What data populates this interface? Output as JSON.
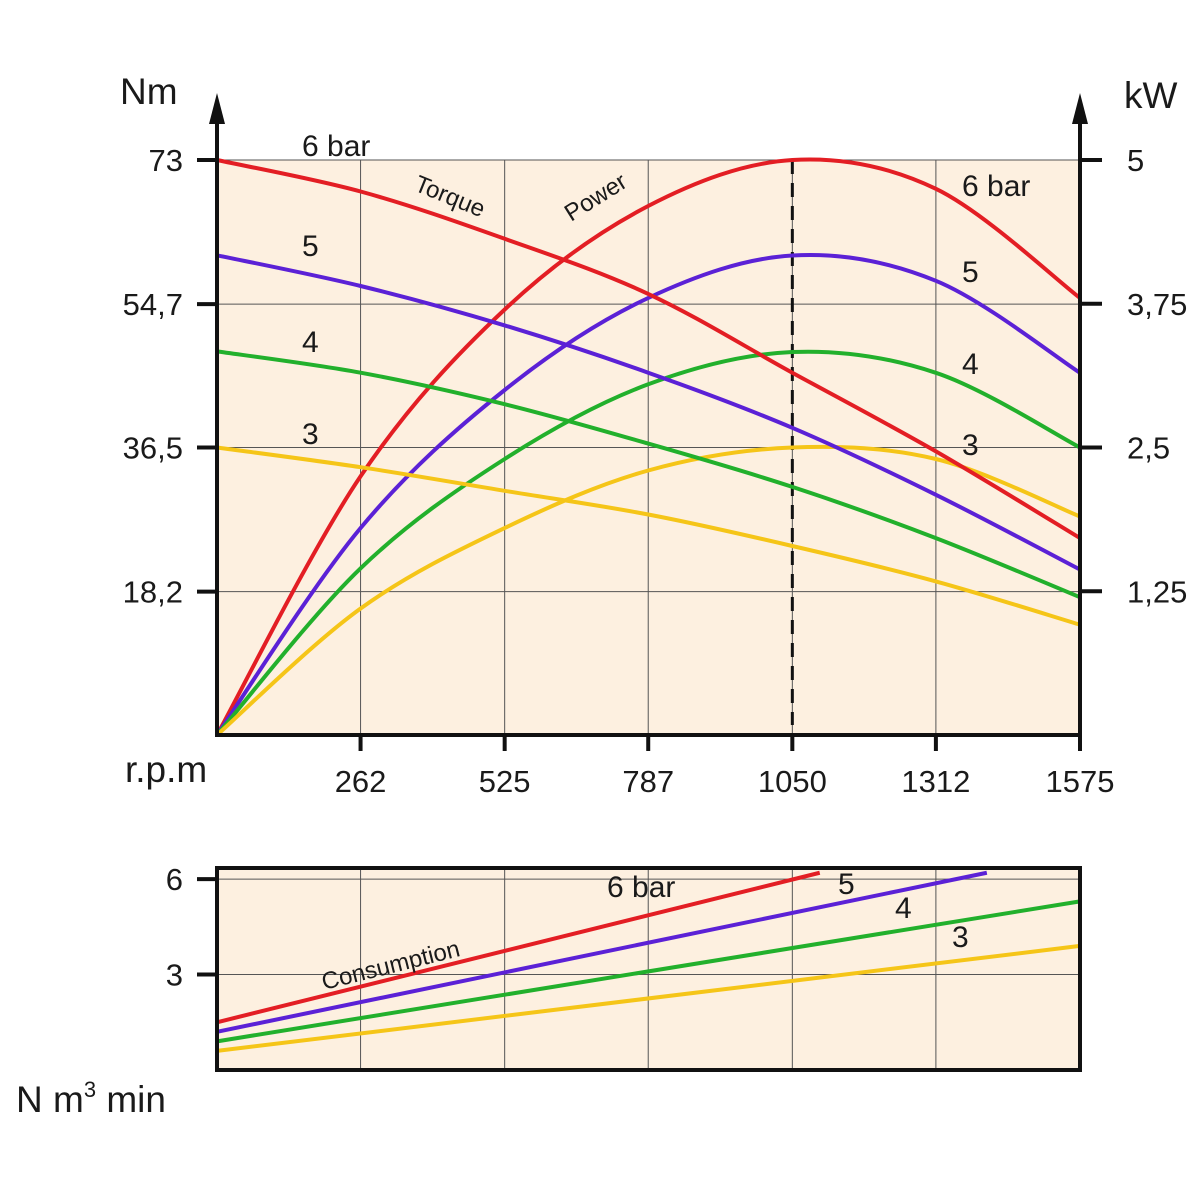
{
  "chart_data": [
    {
      "type": "line",
      "subtitle_labels": {
        "torque": "Torque",
        "power": "Power"
      },
      "x_title": "r.p.m",
      "x_ticks": [
        262,
        525,
        787,
        1050,
        1312,
        1575
      ],
      "x_tick_labels": [
        "262",
        "525",
        "787",
        "1050",
        "1312",
        "1575"
      ],
      "xlim": [
        0,
        1575
      ],
      "y_left_title": "Nm",
      "y_left_ticks": [
        18.2,
        36.5,
        54.7,
        73
      ],
      "y_left_tick_labels": [
        "18,2",
        "36,5",
        "54,7",
        "73"
      ],
      "y_left_lim": [
        0,
        73
      ],
      "y_right_title": "kW",
      "y_right_ticks": [
        1.25,
        2.5,
        3.75,
        5
      ],
      "y_right_tick_labels": [
        "1,25",
        "2,5",
        "3,75",
        "5"
      ],
      "y_right_lim": [
        0,
        5
      ],
      "grid": true,
      "marker_line_x": 1050,
      "colors": {
        "6": "#e31e24",
        "5": "#5b21d6",
        "4": "#22b02c",
        "3": "#f5c518",
        "background": "#fdf0e0"
      },
      "torque_series": [
        {
          "name": "6 bar",
          "label": "6 bar",
          "pressure": "6",
          "x": [
            0,
            262,
            525,
            787,
            1050,
            1312,
            1575
          ],
          "y": [
            73,
            69,
            63,
            56,
            46,
            36,
            25
          ]
        },
        {
          "name": "5",
          "label": "5",
          "pressure": "5",
          "x": [
            0,
            262,
            525,
            787,
            1050,
            1312,
            1575
          ],
          "y": [
            60.9,
            57,
            52,
            46,
            39,
            30.5,
            21
          ]
        },
        {
          "name": "4",
          "label": "4",
          "pressure": "4",
          "x": [
            0,
            262,
            525,
            787,
            1050,
            1312,
            1575
          ],
          "y": [
            48.7,
            46,
            42,
            37,
            31.5,
            25,
            17.5
          ]
        },
        {
          "name": "3",
          "label": "3",
          "pressure": "3",
          "x": [
            0,
            262,
            525,
            787,
            1050,
            1312,
            1575
          ],
          "y": [
            36.5,
            34,
            31,
            28,
            24,
            19.5,
            14
          ]
        }
      ],
      "power_series": [
        {
          "name": "6 bar",
          "label": "6 bar",
          "pressure": "6",
          "x": [
            0,
            262,
            525,
            787,
            1050,
            1312,
            1575
          ],
          "y": [
            0,
            2.25,
            3.7,
            4.6,
            5,
            4.75,
            3.8
          ]
        },
        {
          "name": "5",
          "label": "5",
          "pressure": "5",
          "x": [
            0,
            262,
            525,
            787,
            1050,
            1312,
            1575
          ],
          "y": [
            0,
            1.8,
            3.0,
            3.8,
            4.17,
            3.95,
            3.15
          ]
        },
        {
          "name": "4",
          "label": "4",
          "pressure": "4",
          "x": [
            0,
            262,
            525,
            787,
            1050,
            1312,
            1575
          ],
          "y": [
            0,
            1.45,
            2.4,
            3.05,
            3.33,
            3.15,
            2.5
          ]
        },
        {
          "name": "3",
          "label": "3",
          "pressure": "3",
          "x": [
            0,
            262,
            525,
            787,
            1050,
            1312,
            1575
          ],
          "y": [
            0,
            1.1,
            1.8,
            2.3,
            2.5,
            2.4,
            1.9
          ]
        }
      ]
    },
    {
      "type": "line",
      "series_group_label": "Consumption",
      "y_title_main": "N m",
      "y_title_sup": "3",
      "y_title_rest": " min",
      "xlim": [
        0,
        1575
      ],
      "x_gridlines": [
        262,
        525,
        787,
        1050,
        1312,
        1575
      ],
      "y_ticks": [
        3,
        6
      ],
      "y_tick_labels": [
        "3",
        "6"
      ],
      "ylim": [
        0,
        6
      ],
      "grid": true,
      "series": [
        {
          "name": "6 bar",
          "label": "6 bar",
          "pressure": "6",
          "x": [
            0,
            1100
          ],
          "y": [
            1.5,
            6.2
          ]
        },
        {
          "name": "5",
          "label": "5",
          "pressure": "5",
          "x": [
            0,
            1405
          ],
          "y": [
            1.2,
            6.2
          ]
        },
        {
          "name": "4",
          "label": "4",
          "pressure": "4",
          "x": [
            0,
            1575
          ],
          "y": [
            0.9,
            5.3
          ]
        },
        {
          "name": "3",
          "label": "3",
          "pressure": "3",
          "x": [
            0,
            1575
          ],
          "y": [
            0.6,
            3.9
          ]
        }
      ]
    }
  ]
}
